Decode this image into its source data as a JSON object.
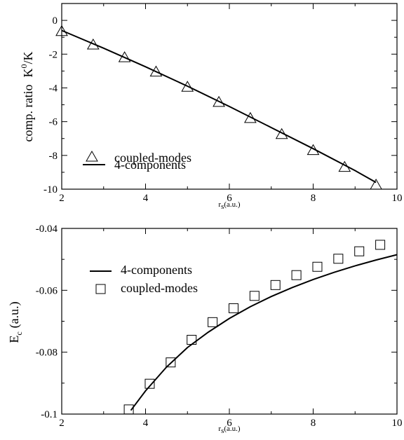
{
  "chart_data": [
    {
      "type": "line",
      "title": "",
      "xlabel": "r",
      "xlabel_sub": "s",
      "xlabel_unit": "(a.u.)",
      "ylabel_prefix": "comp. ratio",
      "ylabel_k": "K",
      "ylabel_sup": "0",
      "ylabel_rest": "/K",
      "xlim": [
        2,
        10
      ],
      "ylim": [
        -10,
        1
      ],
      "xticks": [
        2,
        4,
        6,
        8,
        10
      ],
      "yticks": [
        0,
        -2,
        -4,
        -6,
        -8,
        -10
      ],
      "xtick_labels": [
        "2",
        "4",
        "6",
        "8",
        "10"
      ],
      "ytick_labels": [
        "0",
        "-2",
        "-4",
        "-6",
        "-8",
        "-10"
      ],
      "grid": false,
      "legend_position": "bottom-left",
      "series": [
        {
          "name": "coupled-modes",
          "marker": "triangle",
          "x": [
            2.0,
            2.75,
            3.5,
            4.25,
            5.0,
            5.75,
            6.5,
            7.25,
            8.0,
            8.75,
            9.5
          ],
          "y": [
            -0.65,
            -1.45,
            -2.2,
            -3.05,
            -3.95,
            -4.85,
            -5.8,
            -6.75,
            -7.7,
            -8.7,
            -9.75
          ]
        },
        {
          "name": "4-components",
          "marker": "line",
          "x": [
            2.0,
            3.0,
            4.0,
            5.0,
            6.0,
            7.0,
            8.0,
            9.0,
            9.5
          ],
          "y": [
            -0.6,
            -1.65,
            -2.75,
            -3.9,
            -5.1,
            -6.35,
            -7.6,
            -8.9,
            -9.6
          ]
        }
      ]
    },
    {
      "type": "line",
      "title": "",
      "xlabel": "r",
      "xlabel_sub": "s",
      "xlabel_unit": "(a.u.)",
      "ylabel": "E",
      "ylabel_sub": "c",
      "ylabel_unit": "(a.u.)",
      "xlim": [
        2,
        10
      ],
      "ylim": [
        -0.1,
        -0.04
      ],
      "xticks": [
        2,
        4,
        6,
        8,
        10
      ],
      "yticks": [
        -0.1,
        -0.08,
        -0.06,
        -0.04
      ],
      "xtick_labels": [
        "2",
        "4",
        "6",
        "8",
        "10"
      ],
      "ytick_labels": [
        "-0.1",
        "-0.08",
        "-0.06",
        "-0.04"
      ],
      "grid": false,
      "legend_position": "top-left",
      "series": [
        {
          "name": "4-components",
          "marker": "line",
          "x": [
            3.65,
            4.0,
            4.5,
            5.0,
            5.5,
            6.0,
            6.5,
            7.0,
            7.5,
            8.0,
            8.5,
            9.0,
            9.5,
            10.0
          ],
          "y": [
            -0.0988,
            -0.0925,
            -0.0848,
            -0.0785,
            -0.0735,
            -0.0691,
            -0.0653,
            -0.062,
            -0.0591,
            -0.0565,
            -0.0542,
            -0.0521,
            -0.0502,
            -0.0485
          ]
        },
        {
          "name": "coupled-modes",
          "marker": "square",
          "x": [
            3.6,
            4.1,
            4.6,
            5.1,
            5.6,
            6.1,
            6.6,
            7.1,
            7.6,
            8.1,
            8.6,
            9.1,
            9.6
          ],
          "y": [
            -0.0985,
            -0.0902,
            -0.0833,
            -0.076,
            -0.0703,
            -0.0658,
            -0.0618,
            -0.0583,
            -0.0551,
            -0.0524,
            -0.0498,
            -0.0474,
            -0.0453
          ]
        }
      ]
    }
  ]
}
